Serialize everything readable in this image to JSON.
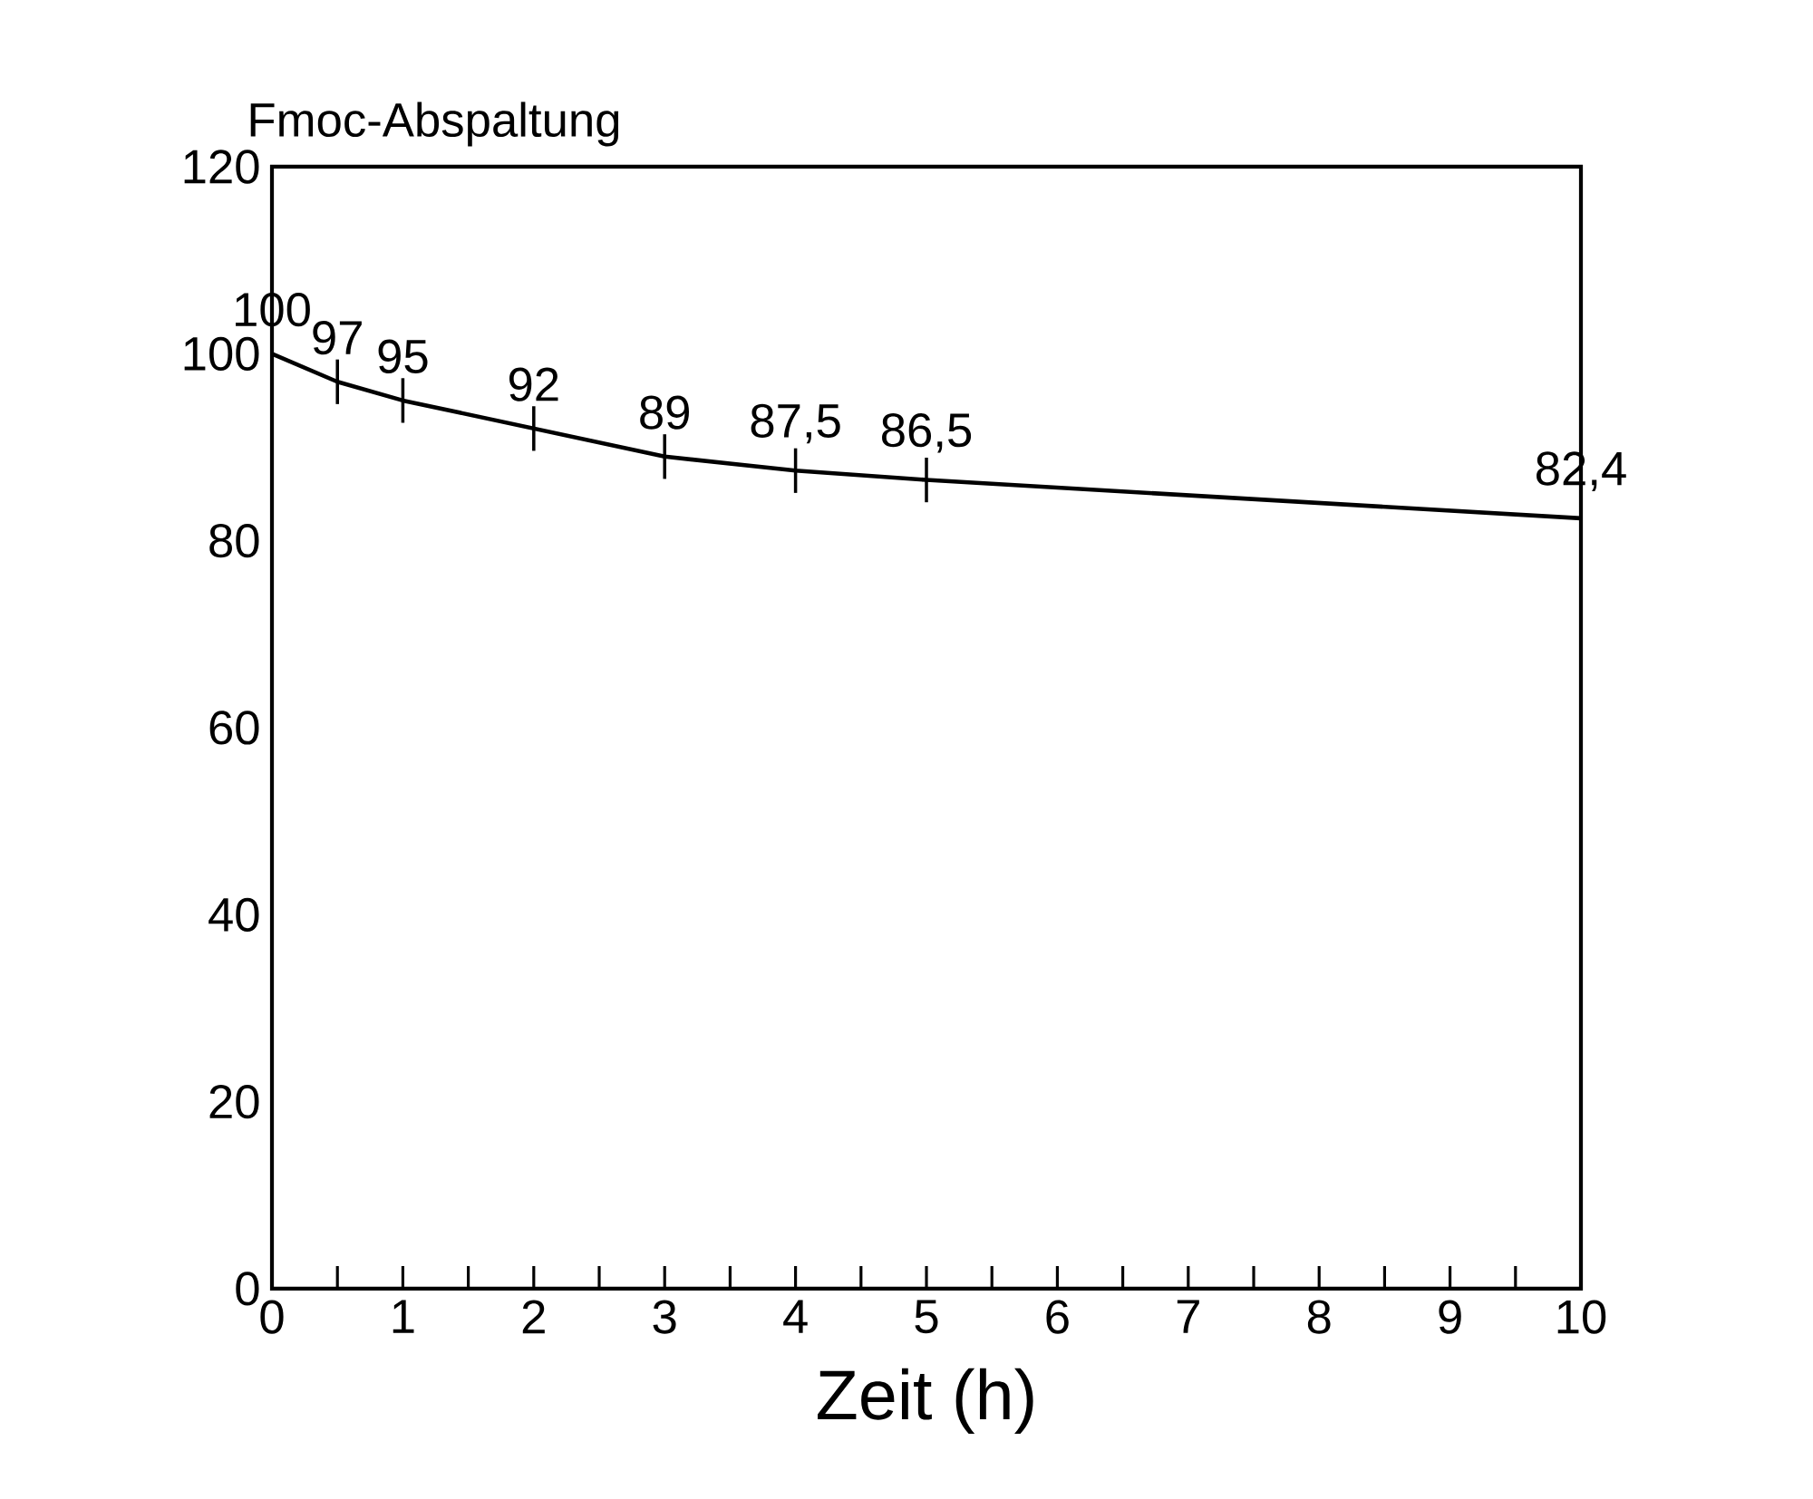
{
  "chart_data": {
    "type": "line",
    "ylabel": "Fmoc-Abspaltung",
    "xlabel": "Zeit (h)",
    "x": [
      0,
      0.5,
      1,
      2,
      3,
      4,
      5,
      10
    ],
    "series": [
      {
        "color": "#000000",
        "values": [
          100,
          97,
          95,
          92,
          89,
          87.5,
          86.5,
          82.4
        ],
        "value_labels": [
          "100",
          "97",
          "95",
          "92",
          "89",
          "87,5",
          "86,5",
          "82,4"
        ]
      }
    ],
    "xlim": [
      0,
      10
    ],
    "xticks": [
      0,
      1,
      2,
      3,
      4,
      5,
      6,
      7,
      8,
      9,
      10
    ],
    "ylim": [
      0,
      120
    ],
    "yticks": [
      0,
      20,
      40,
      60,
      80,
      100,
      120
    ],
    "grid": false
  }
}
